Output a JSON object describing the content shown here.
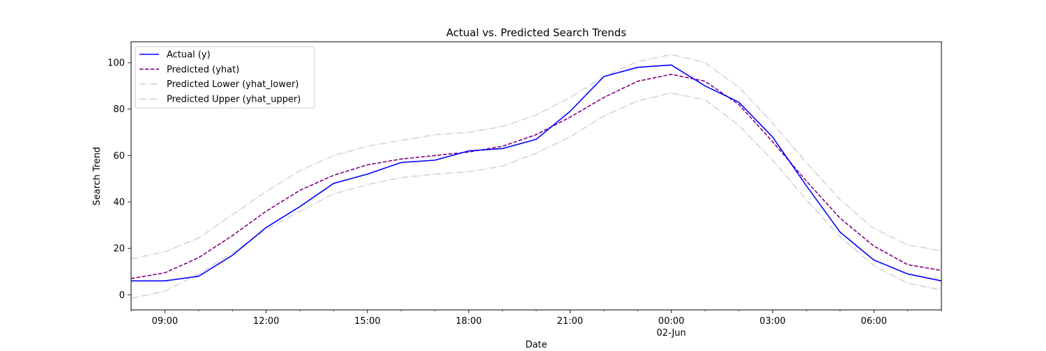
{
  "chart_data": {
    "type": "line",
    "title": "Actual vs. Predicted Search Trends",
    "xlabel": "Date",
    "ylabel": "Search Trend",
    "x": [
      "2024-06-01 08:00",
      "2024-06-01 09:00",
      "2024-06-01 10:00",
      "2024-06-01 11:00",
      "2024-06-01 12:00",
      "2024-06-01 13:00",
      "2024-06-01 14:00",
      "2024-06-01 15:00",
      "2024-06-01 16:00",
      "2024-06-01 17:00",
      "2024-06-01 18:00",
      "2024-06-01 19:00",
      "2024-06-01 20:00",
      "2024-06-01 21:00",
      "2024-06-01 22:00",
      "2024-06-01 23:00",
      "2024-06-02 00:00",
      "2024-06-02 01:00",
      "2024-06-02 02:00",
      "2024-06-02 03:00",
      "2024-06-02 04:00",
      "2024-06-02 05:00",
      "2024-06-02 06:00",
      "2024-06-02 07:00",
      "2024-06-02 08:00"
    ],
    "xlim": [
      "2024-06-01 08:00",
      "2024-06-02 08:00"
    ],
    "ylim": [
      -6.5,
      109
    ],
    "x_ticks": [
      {
        "at": "2024-06-01 09:00",
        "label": "09:00",
        "sublabel": ""
      },
      {
        "at": "2024-06-01 12:00",
        "label": "12:00",
        "sublabel": ""
      },
      {
        "at": "2024-06-01 15:00",
        "label": "15:00",
        "sublabel": ""
      },
      {
        "at": "2024-06-01 18:00",
        "label": "18:00",
        "sublabel": ""
      },
      {
        "at": "2024-06-01 21:00",
        "label": "21:00",
        "sublabel": ""
      },
      {
        "at": "2024-06-02 00:00",
        "label": "00:00",
        "sublabel": "02-Jun"
      },
      {
        "at": "2024-06-02 03:00",
        "label": "03:00",
        "sublabel": ""
      },
      {
        "at": "2024-06-02 06:00",
        "label": "06:00",
        "sublabel": ""
      }
    ],
    "y_ticks": [
      0,
      20,
      40,
      60,
      80,
      100
    ],
    "grid": false,
    "legend_position": "upper-left",
    "series": [
      {
        "name": "Actual (y)",
        "color": "#0000ff",
        "style": "solid",
        "values": [
          6,
          6,
          8,
          17,
          29,
          38,
          48,
          52,
          57,
          58,
          62,
          63,
          67,
          79,
          94,
          98,
          99,
          90,
          83,
          68,
          47,
          27,
          15,
          9,
          6
        ]
      },
      {
        "name": "Predicted (yhat)",
        "color": "#800080",
        "style": "dashed",
        "values": [
          7,
          9.5,
          16,
          25.5,
          36,
          45,
          51.5,
          56,
          58.5,
          60,
          61.5,
          64,
          69,
          76.5,
          85,
          92,
          95,
          92,
          82,
          66,
          49,
          33,
          21,
          13,
          10.5
        ]
      },
      {
        "name": "Predicted Lower (yhat_lower)",
        "color": "#d3d3d3",
        "style": "dashdot",
        "values": [
          -1.5,
          1.5,
          9,
          18,
          28,
          36,
          43.5,
          47.5,
          50.5,
          52,
          53,
          55.5,
          61,
          68,
          77,
          83.5,
          87,
          84,
          73,
          58,
          41,
          25,
          12.5,
          5,
          2
        ]
      },
      {
        "name": "Predicted Upper (yhat_upper)",
        "color": "#d3d3d3",
        "style": "dashdot",
        "values": [
          15.5,
          18.5,
          24.5,
          34.5,
          44.5,
          53.5,
          60,
          64,
          66.5,
          69,
          70,
          72.5,
          77.5,
          85,
          94,
          100.5,
          103.5,
          100,
          89.5,
          74,
          57,
          41,
          28.5,
          21.5,
          19
        ]
      }
    ]
  }
}
